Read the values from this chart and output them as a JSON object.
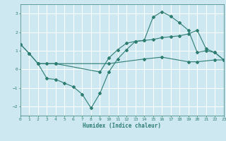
{
  "xlabel": "Humidex (Indice chaleur)",
  "background_color": "#cde8f0",
  "grid_color": "#ffffff",
  "line_color": "#2e7d72",
  "xlim": [
    0,
    23
  ],
  "ylim": [
    -2.5,
    3.5
  ],
  "yticks": [
    -2,
    -1,
    0,
    1,
    2,
    3
  ],
  "xticks": [
    0,
    1,
    2,
    3,
    4,
    5,
    6,
    7,
    8,
    9,
    10,
    11,
    12,
    13,
    14,
    15,
    16,
    17,
    18,
    19,
    20,
    21,
    22,
    23
  ],
  "line1_x": [
    0,
    1,
    2,
    3,
    4,
    10,
    14,
    16,
    19,
    20,
    22,
    23
  ],
  "line1_y": [
    1.35,
    0.85,
    0.3,
    0.3,
    0.3,
    0.3,
    0.55,
    0.65,
    0.4,
    0.4,
    0.5,
    0.5
  ],
  "line2_x": [
    0,
    1,
    2,
    3,
    4,
    5,
    6,
    7,
    8,
    9,
    10,
    11,
    12,
    13,
    14,
    15,
    16,
    17,
    18,
    19,
    20,
    21,
    22,
    23
  ],
  "line2_y": [
    1.35,
    0.85,
    0.3,
    -0.5,
    -0.55,
    -0.75,
    -0.95,
    -1.35,
    -2.1,
    -1.3,
    -0.15,
    0.55,
    1.05,
    1.5,
    1.55,
    2.8,
    3.1,
    2.85,
    2.5,
    2.1,
    0.9,
    1.0,
    0.9,
    0.5
  ],
  "line3_x": [
    2,
    4,
    9,
    10,
    11,
    12,
    13,
    14,
    15,
    16,
    17,
    18,
    19,
    20,
    21,
    22,
    23
  ],
  "line3_y": [
    0.3,
    0.3,
    -0.15,
    0.6,
    1.05,
    1.4,
    1.5,
    1.55,
    1.6,
    1.7,
    1.75,
    1.8,
    1.9,
    2.1,
    1.1,
    0.9,
    0.5
  ]
}
